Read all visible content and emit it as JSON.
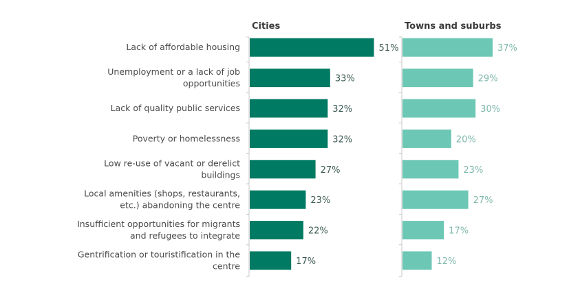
{
  "chart_data": {
    "type": "bar",
    "orientation": "horizontal",
    "title": "",
    "categories": [
      [
        "Lack of affordable housing"
      ],
      [
        "Unemployment or a lack of job",
        "opportunities"
      ],
      [
        "Lack of quality public services"
      ],
      [
        "Poverty or homelessness"
      ],
      [
        "Low re-use of vacant or derelict",
        "buildings"
      ],
      [
        "Local amenities (shops, restaurants,",
        "etc.) abandoning the centre"
      ],
      [
        "Insufficient opportunities for migrants",
        "and refugees to integrate"
      ],
      [
        "Gentrification or touristification in the",
        "centre"
      ]
    ],
    "series": [
      {
        "name": "Cities",
        "color": "#007a62",
        "label_color": "#3d5a54",
        "values": [
          51,
          33,
          32,
          32,
          27,
          23,
          22,
          17
        ],
        "labels": [
          "51%",
          "33%",
          "32%",
          "32%",
          "27%",
          "23%",
          "22%",
          "17%"
        ]
      },
      {
        "name": "Towns and suburbs",
        "color": "#6cc7b5",
        "label_color": "#7fb8ac",
        "values": [
          37,
          29,
          30,
          20,
          23,
          27,
          17,
          12
        ],
        "labels": [
          "37%",
          "29%",
          "30%",
          "20%",
          "23%",
          "27%",
          "17%",
          "12%"
        ]
      }
    ],
    "xlim": [
      0,
      60
    ],
    "unit": "%",
    "grid": false,
    "legend": "none (panel titles above each series)"
  }
}
